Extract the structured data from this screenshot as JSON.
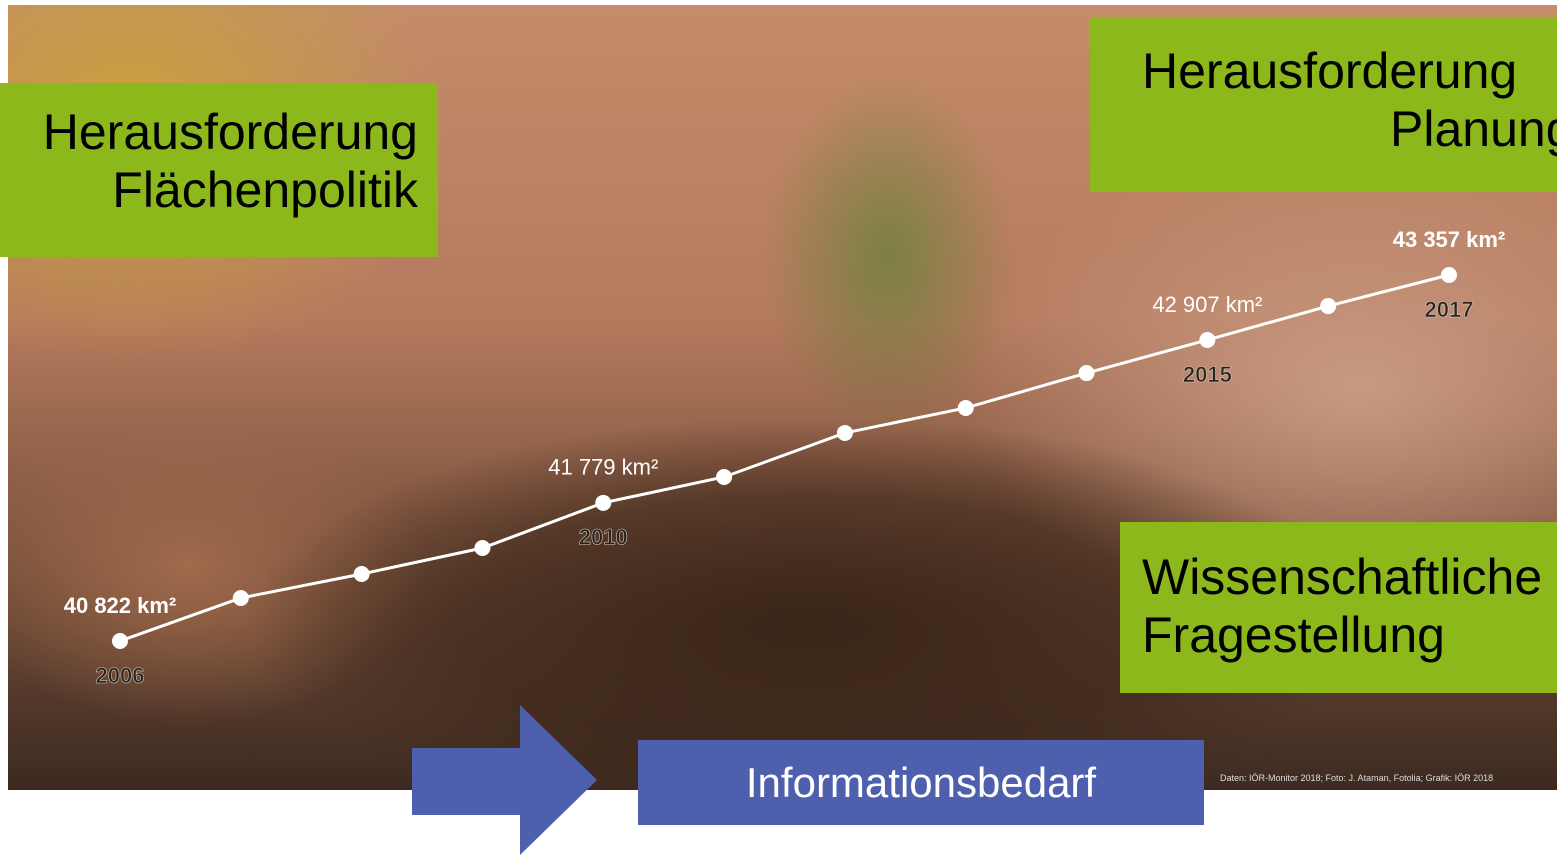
{
  "chart_data": {
    "type": "line",
    "categories": [
      "2006",
      null,
      null,
      null,
      "2010",
      null,
      null,
      null,
      null,
      "2015",
      null,
      "2017"
    ],
    "values": [
      40822,
      41120,
      41286,
      41466,
      41779,
      41958,
      42263,
      42436,
      42678,
      42907,
      43142,
      43357
    ],
    "value_labels": [
      "40 822 km²",
      null,
      null,
      null,
      "41 779 km²",
      null,
      null,
      null,
      null,
      "42 907 km²",
      null,
      "43 357 km²"
    ],
    "color": "#ffffff"
  },
  "boxes": [
    {
      "lines": [
        "Herausforderung",
        "Flächenpolitik"
      ]
    },
    {
      "lines": [
        "Herausforderung",
        "Planung"
      ]
    },
    {
      "lines": [
        "Wissenschaftliche",
        "Fragestellung"
      ]
    }
  ],
  "arrow_box": "Informationsbedarf",
  "credit": "Daten: IÖR-Monitor 2018; Foto: J. Ataman, Fotolia; Grafik: IÖR 2018"
}
